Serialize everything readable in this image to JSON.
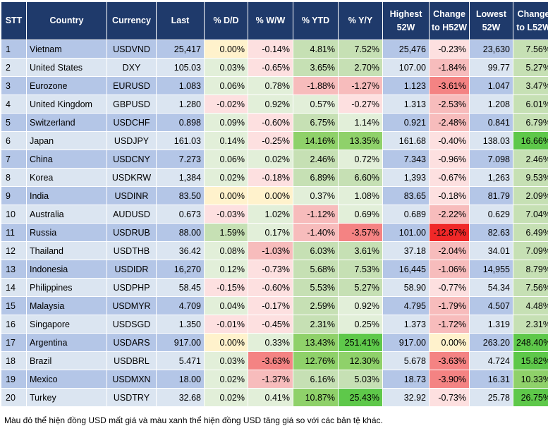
{
  "headers": [
    "STT",
    "Country",
    "Currency",
    "Last",
    "% D/D",
    "% W/W",
    "% YTD",
    "% Y/Y",
    "Highest 52W",
    "Change to H52W",
    "Lowest 52W",
    "Change to L52W"
  ],
  "rows": [
    {
      "stt": "1",
      "country": "Vietnam",
      "currency": "USDVND",
      "last": "25,417",
      "dd": "0.00%",
      "ww": "-0.14%",
      "ytd": "4.81%",
      "yy": "7.52%",
      "high": "25,476",
      "chh": "-0.23%",
      "low": "23,630",
      "chl": "7.56%"
    },
    {
      "stt": "2",
      "country": "United States",
      "currency": "DXY",
      "last": "105.03",
      "dd": "0.03%",
      "ww": "-0.65%",
      "ytd": "3.65%",
      "yy": "2.70%",
      "high": "107.00",
      "chh": "-1.84%",
      "low": "99.77",
      "chl": "5.27%"
    },
    {
      "stt": "3",
      "country": "Eurozone",
      "currency": "EURUSD",
      "last": "1.083",
      "dd": "0.06%",
      "ww": "0.78%",
      "ytd": "-1.88%",
      "yy": "-1.27%",
      "high": "1.123",
      "chh": "-3.61%",
      "low": "1.047",
      "chl": "3.47%"
    },
    {
      "stt": "4",
      "country": "United Kingdom",
      "currency": "GBPUSD",
      "last": "1.280",
      "dd": "-0.02%",
      "ww": "0.92%",
      "ytd": "0.57%",
      "yy": "-0.27%",
      "high": "1.313",
      "chh": "-2.53%",
      "low": "1.208",
      "chl": "6.01%"
    },
    {
      "stt": "5",
      "country": "Switzerland",
      "currency": "USDCHF",
      "last": "0.898",
      "dd": "0.09%",
      "ww": "-0.60%",
      "ytd": "6.75%",
      "yy": "1.14%",
      "high": "0.921",
      "chh": "-2.48%",
      "low": "0.841",
      "chl": "6.79%"
    },
    {
      "stt": "6",
      "country": "Japan",
      "currency": "USDJPY",
      "last": "161.03",
      "dd": "0.14%",
      "ww": "-0.25%",
      "ytd": "14.16%",
      "yy": "13.35%",
      "high": "161.68",
      "chh": "-0.40%",
      "low": "138.03",
      "chl": "16.66%"
    },
    {
      "stt": "7",
      "country": "China",
      "currency": "USDCNY",
      "last": "7.273",
      "dd": "0.06%",
      "ww": "0.02%",
      "ytd": "2.46%",
      "yy": "0.72%",
      "high": "7.343",
      "chh": "-0.96%",
      "low": "7.098",
      "chl": "2.46%"
    },
    {
      "stt": "8",
      "country": "Korea",
      "currency": "USDKRW",
      "last": "1,384",
      "dd": "0.02%",
      "ww": "-0.18%",
      "ytd": "6.89%",
      "yy": "6.60%",
      "high": "1,393",
      "chh": "-0.67%",
      "low": "1,263",
      "chl": "9.53%"
    },
    {
      "stt": "9",
      "country": "India",
      "currency": "USDINR",
      "last": "83.50",
      "dd": "0.00%",
      "ww": "0.00%",
      "ytd": "0.37%",
      "yy": "1.08%",
      "high": "83.65",
      "chh": "-0.18%",
      "low": "81.79",
      "chl": "2.09%"
    },
    {
      "stt": "10",
      "country": "Australia",
      "currency": "AUDUSD",
      "last": "0.673",
      "dd": "-0.03%",
      "ww": "1.02%",
      "ytd": "-1.12%",
      "yy": "0.69%",
      "high": "0.689",
      "chh": "-2.22%",
      "low": "0.629",
      "chl": "7.04%"
    },
    {
      "stt": "11",
      "country": "Russia",
      "currency": "USDRUB",
      "last": "88.00",
      "dd": "1.59%",
      "ww": "0.17%",
      "ytd": "-1.40%",
      "yy": "-3.57%",
      "high": "101.00",
      "chh": "-12.87%",
      "low": "82.63",
      "chl": "6.49%"
    },
    {
      "stt": "12",
      "country": "Thailand",
      "currency": "USDTHB",
      "last": "36.42",
      "dd": "0.08%",
      "ww": "-1.03%",
      "ytd": "6.03%",
      "yy": "3.61%",
      "high": "37.18",
      "chh": "-2.04%",
      "low": "34.01",
      "chl": "7.09%"
    },
    {
      "stt": "13",
      "country": "Indonesia",
      "currency": "USDIDR",
      "last": "16,270",
      "dd": "0.12%",
      "ww": "-0.73%",
      "ytd": "5.68%",
      "yy": "7.53%",
      "high": "16,445",
      "chh": "-1.06%",
      "low": "14,955",
      "chl": "8.79%"
    },
    {
      "stt": "14",
      "country": "Philippines",
      "currency": "USDPHP",
      "last": "58.45",
      "dd": "-0.15%",
      "ww": "-0.60%",
      "ytd": "5.53%",
      "yy": "5.27%",
      "high": "58.90",
      "chh": "-0.77%",
      "low": "54.34",
      "chl": "7.56%"
    },
    {
      "stt": "15",
      "country": "Malaysia",
      "currency": "USDMYR",
      "last": "4.709",
      "dd": "0.04%",
      "ww": "-0.17%",
      "ytd": "2.59%",
      "yy": "0.92%",
      "high": "4.795",
      "chh": "-1.79%",
      "low": "4.507",
      "chl": "4.48%"
    },
    {
      "stt": "16",
      "country": "Singapore",
      "currency": "USDSGD",
      "last": "1.350",
      "dd": "-0.01%",
      "ww": "-0.45%",
      "ytd": "2.31%",
      "yy": "0.25%",
      "high": "1.373",
      "chh": "-1.72%",
      "low": "1.319",
      "chl": "2.31%"
    },
    {
      "stt": "17",
      "country": "Argentina",
      "currency": "USDARS",
      "last": "917.00",
      "dd": "0.00%",
      "ww": "0.33%",
      "ytd": "13.43%",
      "yy": "251.41%",
      "high": "917.00",
      "chh": "0.00%",
      "low": "263.20",
      "chl": "248.40%"
    },
    {
      "stt": "18",
      "country": "Brazil",
      "currency": "USDBRL",
      "last": "5.471",
      "dd": "0.03%",
      "ww": "-3.63%",
      "ytd": "12.76%",
      "yy": "12.30%",
      "high": "5.678",
      "chh": "-3.63%",
      "low": "4.724",
      "chl": "15.82%"
    },
    {
      "stt": "19",
      "country": "Mexico",
      "currency": "USDMXN",
      "last": "18.00",
      "dd": "0.02%",
      "ww": "-1.37%",
      "ytd": "6.16%",
      "yy": "5.03%",
      "high": "18.73",
      "chh": "-3.90%",
      "low": "16.31",
      "chl": "10.33%"
    },
    {
      "stt": "20",
      "country": "Turkey",
      "currency": "USDTRY",
      "last": "32.68",
      "dd": "0.02%",
      "ww": "0.41%",
      "ytd": "10.87%",
      "yy": "25.43%",
      "high": "32.92",
      "chh": "-0.73%",
      "low": "25.78",
      "chl": "26.75%"
    }
  ],
  "footnote": "Màu đỏ thể hiện đồng USD mất giá và màu xanh thể hiện đồng USD tăng giá so với các bản tệ khác.",
  "colors": {
    "header_bg": "#1f3a6b",
    "row_odd": "#b4c6e7",
    "row_even": "#dbe5f1",
    "positive": "#5ec84a",
    "negative": "#f02828"
  }
}
